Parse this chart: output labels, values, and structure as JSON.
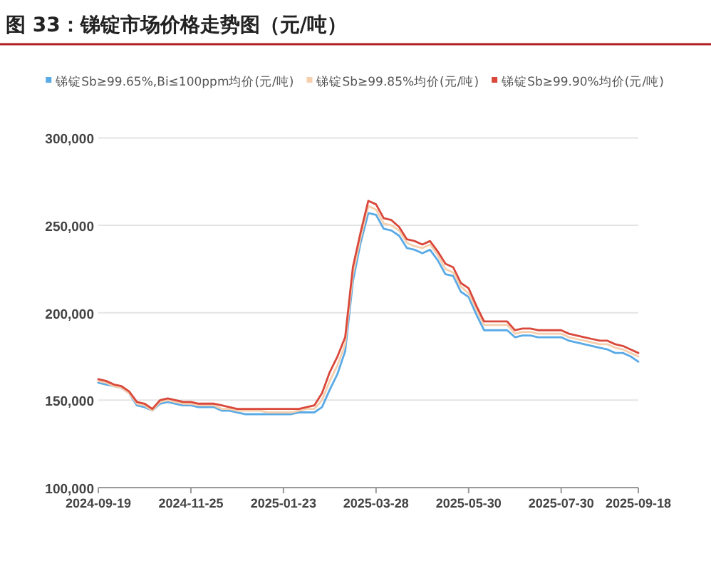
{
  "chart_data": {
    "type": "line",
    "title": "图 33：锑锭市场价格走势图（元/吨）",
    "categories": [
      "2024-09-19",
      null,
      null,
      null,
      null,
      null,
      null,
      null,
      null,
      null,
      null,
      null,
      "2024-11-25",
      null,
      null,
      null,
      null,
      null,
      null,
      null,
      null,
      null,
      null,
      null,
      "2025-01-23",
      null,
      null,
      null,
      null,
      null,
      null,
      null,
      null,
      null,
      null,
      null,
      "2025-03-28",
      null,
      null,
      null,
      null,
      null,
      null,
      null,
      null,
      null,
      null,
      null,
      "2025-05-30",
      null,
      null,
      null,
      null,
      null,
      null,
      null,
      null,
      null,
      null,
      null,
      "2025-07-30",
      null,
      null,
      null,
      null,
      null,
      null,
      null,
      null,
      null,
      "2025-09-18"
    ],
    "series": [
      {
        "name": "锑锭Sb≥99.65%,Bi≤100ppm均价(元/吨)",
        "color": "#5aaae6",
        "values": [
          160000,
          159000,
          158000,
          157000,
          154000,
          147000,
          146000,
          144000,
          148000,
          149000,
          148000,
          147000,
          147000,
          146000,
          146000,
          146000,
          144000,
          144000,
          143000,
          142000,
          142000,
          142000,
          142000,
          142000,
          142000,
          142000,
          143000,
          143000,
          143000,
          146000,
          156000,
          165000,
          178000,
          218000,
          240000,
          257000,
          256000,
          248000,
          247000,
          244000,
          237000,
          236000,
          234000,
          236000,
          230000,
          222000,
          221000,
          212000,
          209000,
          199000,
          190000,
          190000,
          190000,
          190000,
          186000,
          187000,
          187000,
          186000,
          186000,
          186000,
          186000,
          184000,
          183000,
          182000,
          181000,
          180000,
          179000,
          177000,
          177000,
          175000,
          172000
        ]
      },
      {
        "name": "锑锭Sb≥99.85%均价(元/吨)",
        "color": "#f5cfae",
        "values": [
          161000,
          160000,
          158000,
          157000,
          154000,
          148000,
          147000,
          144000,
          149000,
          150000,
          149000,
          148000,
          148000,
          147000,
          147000,
          147000,
          145000,
          145000,
          144000,
          144000,
          144000,
          144000,
          143000,
          143000,
          143000,
          143000,
          144000,
          145000,
          145000,
          150000,
          161000,
          170000,
          182000,
          222000,
          243000,
          261000,
          259000,
          251000,
          250000,
          247000,
          240000,
          238000,
          237000,
          239000,
          233000,
          225000,
          223000,
          215000,
          211000,
          202000,
          193000,
          193000,
          193000,
          193000,
          188000,
          189000,
          189000,
          188000,
          188000,
          188000,
          188000,
          186000,
          185000,
          184000,
          183000,
          182000,
          182000,
          180000,
          179000,
          177000,
          175000
        ]
      },
      {
        "name": "锑锭Sb≥99.90%均价(元/吨)",
        "color": "#d9483b",
        "values": [
          162000,
          161000,
          159000,
          158000,
          155000,
          149000,
          148000,
          145000,
          150000,
          151000,
          150000,
          149000,
          149000,
          148000,
          148000,
          148000,
          147000,
          146000,
          145000,
          145000,
          145000,
          145000,
          145000,
          145000,
          145000,
          145000,
          145000,
          146000,
          147000,
          154000,
          166000,
          175000,
          186000,
          226000,
          246000,
          264000,
          262000,
          254000,
          253000,
          249000,
          242000,
          241000,
          239000,
          241000,
          235000,
          228000,
          226000,
          217000,
          214000,
          204000,
          195000,
          195000,
          195000,
          195000,
          190000,
          191000,
          191000,
          190000,
          190000,
          190000,
          190000,
          188000,
          187000,
          186000,
          185000,
          184000,
          184000,
          182000,
          181000,
          179000,
          177000
        ]
      }
    ],
    "ylim": [
      100000,
      300000
    ],
    "yticks": [
      {
        "value": 100000,
        "label": "100,000"
      },
      {
        "value": 150000,
        "label": "150,000"
      },
      {
        "value": 200000,
        "label": "200,000"
      },
      {
        "value": 250000,
        "label": "250,000"
      },
      {
        "value": 300000,
        "label": "300,000"
      }
    ],
    "grid": "y",
    "legend": "top",
    "marker": "none",
    "line_style": "solid"
  }
}
